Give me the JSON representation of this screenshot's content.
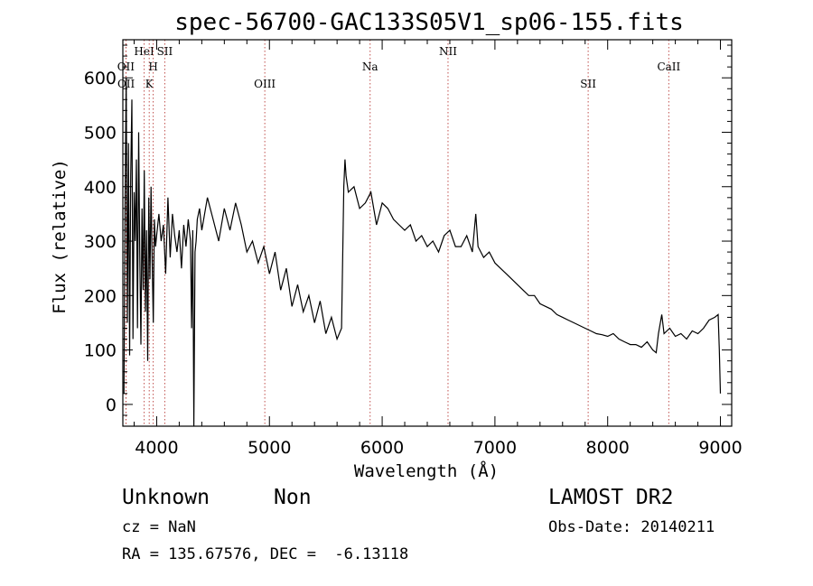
{
  "chart_data": {
    "type": "line",
    "title": "spec-56700-GAC133S05V1_sp06-155.fits",
    "xlabel": "Wavelength (Å)",
    "ylabel": "Flux (relative)",
    "xlim": [
      3700,
      9100
    ],
    "ylim": [
      -40,
      670
    ],
    "xticks": [
      4000,
      5000,
      6000,
      7000,
      8000,
      9000
    ],
    "yticks": [
      0,
      100,
      200,
      300,
      400,
      500,
      600
    ],
    "grid": false,
    "spectrum": {
      "x": [
        3710,
        3720,
        3730,
        3740,
        3750,
        3760,
        3770,
        3780,
        3790,
        3800,
        3810,
        3820,
        3830,
        3840,
        3850,
        3860,
        3870,
        3880,
        3890,
        3900,
        3910,
        3920,
        3930,
        3940,
        3950,
        3960,
        3970,
        3980,
        3990,
        4000,
        4020,
        4040,
        4060,
        4080,
        4100,
        4120,
        4140,
        4160,
        4180,
        4200,
        4220,
        4240,
        4260,
        4280,
        4300,
        4310,
        4320,
        4330,
        4340,
        4350,
        4360,
        4380,
        4400,
        4450,
        4500,
        4550,
        4600,
        4650,
        4700,
        4750,
        4800,
        4850,
        4900,
        4950,
        5000,
        5050,
        5100,
        5150,
        5200,
        5250,
        5300,
        5350,
        5400,
        5450,
        5500,
        5550,
        5600,
        5640,
        5660,
        5670,
        5680,
        5700,
        5750,
        5800,
        5850,
        5900,
        5950,
        6000,
        6050,
        6100,
        6150,
        6200,
        6250,
        6300,
        6350,
        6400,
        6450,
        6500,
        6550,
        6600,
        6650,
        6700,
        6750,
        6800,
        6830,
        6850,
        6900,
        6950,
        7000,
        7050,
        7100,
        7150,
        7200,
        7250,
        7300,
        7350,
        7400,
        7450,
        7500,
        7550,
        7600,
        7650,
        7700,
        7750,
        7800,
        7850,
        7900,
        7950,
        8000,
        8050,
        8100,
        8150,
        8200,
        8250,
        8300,
        8350,
        8400,
        8430,
        8450,
        8480,
        8500,
        8550,
        8600,
        8650,
        8700,
        8750,
        8800,
        8850,
        8900,
        8950,
        8980,
        8990,
        9000
      ],
      "y": [
        20,
        380,
        600,
        150,
        480,
        90,
        420,
        560,
        120,
        390,
        300,
        450,
        140,
        500,
        280,
        110,
        360,
        210,
        430,
        170,
        320,
        80,
        380,
        230,
        400,
        260,
        150,
        340,
        290,
        310,
        350,
        300,
        330,
        240,
        380,
        270,
        350,
        310,
        280,
        320,
        250,
        330,
        290,
        340,
        300,
        140,
        320,
        -40,
        280,
        300,
        340,
        360,
        320,
        380,
        340,
        300,
        360,
        320,
        370,
        330,
        280,
        300,
        260,
        290,
        240,
        280,
        210,
        250,
        180,
        220,
        170,
        200,
        150,
        190,
        130,
        160,
        120,
        140,
        400,
        450,
        420,
        390,
        400,
        360,
        370,
        390,
        330,
        370,
        360,
        340,
        330,
        320,
        330,
        300,
        310,
        290,
        300,
        280,
        310,
        320,
        290,
        290,
        310,
        280,
        350,
        290,
        270,
        280,
        260,
        250,
        240,
        230,
        220,
        210,
        200,
        200,
        185,
        180,
        175,
        165,
        160,
        155,
        150,
        145,
        140,
        135,
        130,
        128,
        125,
        130,
        120,
        115,
        110,
        110,
        105,
        115,
        100,
        95,
        130,
        165,
        130,
        140,
        125,
        130,
        120,
        135,
        130,
        140,
        155,
        160,
        165,
        100,
        20
      ]
    },
    "lines": [
      {
        "label": "OII",
        "x": 3727,
        "row": 2
      },
      {
        "label": "OII",
        "x": 3729,
        "row": 3
      },
      {
        "label": "HeI",
        "x": 3889,
        "row": 1
      },
      {
        "label": "K",
        "x": 3934,
        "row": 3
      },
      {
        "label": "H",
        "x": 3969,
        "row": 2
      },
      {
        "label": "SII",
        "x": 4072,
        "row": 1
      },
      {
        "label": "OIII",
        "x": 4959,
        "row": 3
      },
      {
        "label": "Na",
        "x": 5893,
        "row": 2
      },
      {
        "label": "NII",
        "x": 6584,
        "row": 1
      },
      {
        "label": "SII",
        "x": 7827,
        "row": 3
      },
      {
        "label": "CaII",
        "x": 8542,
        "row": 2
      }
    ]
  },
  "meta": {
    "object_class": "Unknown",
    "object_subclass": "Non",
    "survey": "LAMOST DR2",
    "redshift": "cz = NaN",
    "obs_date": "Obs-Date: 20140211",
    "coords": "RA = 135.67576, DEC =  -6.13118"
  },
  "colors": {
    "spectrum": "#000000",
    "line_markers": "#c0504d"
  }
}
